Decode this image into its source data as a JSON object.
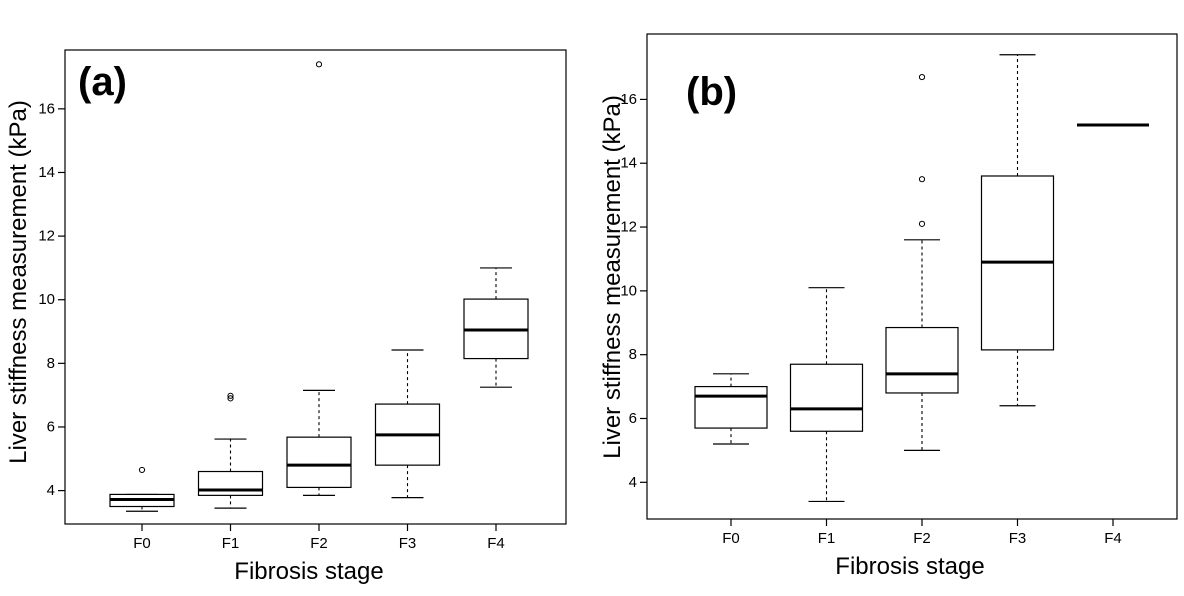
{
  "chart_data": [
    {
      "type": "box",
      "panel_label": "(a)",
      "xlabel": "Fibrosis stage",
      "ylabel": "Liver stiffness measurement (kPa)",
      "categories": [
        "F0",
        "F1",
        "F2",
        "F3",
        "F4"
      ],
      "yticks": [
        4,
        6,
        8,
        10,
        12,
        14,
        16
      ],
      "ytick_labels": [
        "4",
        "6",
        "8",
        "10",
        "12",
        "14",
        "16"
      ],
      "ylim": [
        2.95,
        17.85
      ],
      "boxes": [
        {
          "category": "F0",
          "min": 3.35,
          "q1": 3.5,
          "median": 3.72,
          "q3": 3.88,
          "max": 3.88,
          "outliers": [
            4.65
          ]
        },
        {
          "category": "F1",
          "min": 3.45,
          "q1": 3.85,
          "median": 4.02,
          "q3": 4.6,
          "max": 5.62,
          "outliers": [
            6.9,
            6.98
          ]
        },
        {
          "category": "F2",
          "min": 3.85,
          "q1": 4.1,
          "median": 4.8,
          "q3": 5.68,
          "max": 7.15,
          "outliers": [
            17.4
          ]
        },
        {
          "category": "F3",
          "min": 3.78,
          "q1": 4.8,
          "median": 5.75,
          "q3": 6.72,
          "max": 8.42,
          "outliers": []
        },
        {
          "category": "F4",
          "min": 7.25,
          "q1": 8.15,
          "median": 9.05,
          "q3": 10.02,
          "max": 11.0,
          "outliers": []
        }
      ]
    },
    {
      "type": "box",
      "panel_label": "(b)",
      "xlabel": "Fibrosis stage",
      "ylabel": "Liver stiffness measurement (kPa)",
      "categories": [
        "F0",
        "F1",
        "F2",
        "F3",
        "F4"
      ],
      "yticks": [
        4,
        6,
        8,
        10,
        12,
        14,
        16
      ],
      "ytick_labels": [
        "4",
        "6",
        "8",
        "10",
        "12",
        "14",
        "16"
      ],
      "ylim": [
        2.85,
        18.05
      ],
      "boxes": [
        {
          "category": "F0",
          "min": 5.2,
          "q1": 5.7,
          "median": 6.7,
          "q3": 7.0,
          "max": 7.4,
          "outliers": []
        },
        {
          "category": "F1",
          "min": 3.4,
          "q1": 5.6,
          "median": 6.3,
          "q3": 7.7,
          "max": 10.1,
          "outliers": []
        },
        {
          "category": "F2",
          "min": 5.0,
          "q1": 6.8,
          "median": 7.4,
          "q3": 8.85,
          "max": 11.6,
          "outliers": [
            12.1,
            13.5,
            16.7
          ]
        },
        {
          "category": "F3",
          "min": 6.4,
          "q1": 8.15,
          "median": 10.9,
          "q3": 13.6,
          "max": 17.4,
          "outliers": []
        },
        {
          "category": "F4",
          "min": 15.2,
          "q1": 15.2,
          "median": 15.2,
          "q3": 15.2,
          "max": 15.2,
          "outliers": []
        }
      ]
    }
  ]
}
